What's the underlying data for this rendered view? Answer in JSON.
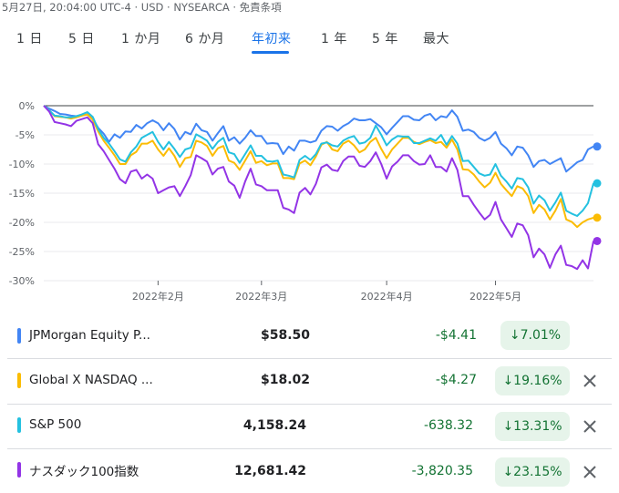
{
  "header": {
    "timestamp": "5月27日, 20:04:00 UTC-4 · USD · NYSEARCA · 免責条項"
  },
  "tabs": [
    {
      "label": "1 日",
      "active": false
    },
    {
      "label": "5 日",
      "active": false
    },
    {
      "label": "1 か月",
      "active": false
    },
    {
      "label": "6 か月",
      "active": false
    },
    {
      "label": "年初来",
      "active": true
    },
    {
      "label": "1 年",
      "active": false
    },
    {
      "label": "5 年",
      "active": false
    },
    {
      "label": "最大",
      "active": false
    }
  ],
  "chart_data": {
    "type": "line",
    "ylim": [
      -30,
      0
    ],
    "yticks": [
      "0%",
      "-5%",
      "-10%",
      "-15%",
      "-20%",
      "-25%",
      "-30%"
    ],
    "ytick_values": [
      0,
      -5,
      -10,
      -15,
      -20,
      -25,
      -30
    ],
    "xtick_labels": [
      "2022年2月",
      "2022年3月",
      "2022年4月",
      "2022年5月"
    ],
    "xtick_positions": [
      21,
      40,
      63,
      83
    ],
    "n_points": 102,
    "grid": true,
    "series": [
      {
        "name": "JPMorgan Equity P...",
        "color": "#4285f4",
        "values": [
          0,
          -0.5,
          -0.9,
          -1.4,
          -1.5,
          -1.7,
          -1.8,
          -1.6,
          -1.5,
          -2.2,
          -3.8,
          -4.8,
          -6.2,
          -4.9,
          -5.5,
          -4.4,
          -4.5,
          -3.3,
          -3.9,
          -3.0,
          -2.5,
          -3.0,
          -4.2,
          -3.0,
          -4.0,
          -5.8,
          -4.5,
          -4.9,
          -3.1,
          -4.2,
          -4.5,
          -6.0,
          -4.7,
          -3.5,
          -6.0,
          -5.4,
          -6.5,
          -5.5,
          -4.2,
          -5.2,
          -5.2,
          -6.5,
          -6.4,
          -6.5,
          -8.3,
          -7.0,
          -7.7,
          -6.0,
          -6.0,
          -6.3,
          -6.0,
          -4.3,
          -3.5,
          -3.6,
          -4.3,
          -3.5,
          -3.0,
          -2.2,
          -2.5,
          -2.5,
          -2.3,
          -3.0,
          -3.7,
          -4.9,
          -3.8,
          -2.8,
          -1.8,
          -1.8,
          -2.4,
          -2.5,
          -1.7,
          -1.4,
          -2.5,
          -1.8,
          -2.0,
          -0.8,
          -1.9,
          -4.3,
          -4.1,
          -4.5,
          -5.5,
          -6.0,
          -5.5,
          -4.5,
          -6.5,
          -7.3,
          -8.5,
          -7.0,
          -7.2,
          -8.5,
          -10.5,
          -9.5,
          -9.3,
          -10.0,
          -9.5,
          -9.0,
          -11.3,
          -10.5,
          -9.7,
          -9.3,
          -7.5,
          -7.0
        ]
      },
      {
        "name": "Global X NASDAQ ...",
        "color": "#fbbc04",
        "values": [
          0,
          -0.8,
          -1.8,
          -1.9,
          -2.0,
          -2.2,
          -2.0,
          -1.7,
          -1.5,
          -2.4,
          -4.4,
          -6.0,
          -7.2,
          -8.5,
          -10.0,
          -10.0,
          -8.5,
          -7.9,
          -6.5,
          -6.5,
          -6.0,
          -7.5,
          -8.6,
          -7.3,
          -8.6,
          -10.5,
          -9.0,
          -8.8,
          -6.0,
          -6.3,
          -6.9,
          -8.6,
          -7.3,
          -6.9,
          -9.4,
          -9.8,
          -11.0,
          -9.4,
          -7.8,
          -9.8,
          -9.5,
          -10.2,
          -9.9,
          -9.9,
          -12.4,
          -12.4,
          -12.6,
          -9.9,
          -9.4,
          -10.2,
          -8.7,
          -6.7,
          -6.2,
          -7.5,
          -7.8,
          -6.5,
          -6.0,
          -6.8,
          -8.0,
          -7.5,
          -6.2,
          -5.5,
          -7.4,
          -9.0,
          -7.5,
          -6.5,
          -5.5,
          -5.5,
          -6.2,
          -6.6,
          -6.2,
          -5.9,
          -6.4,
          -6.2,
          -7.2,
          -5.8,
          -7.5,
          -10.9,
          -11.0,
          -11.8,
          -13.0,
          -14.0,
          -13.2,
          -11.5,
          -13.4,
          -14.5,
          -15.5,
          -13.8,
          -14.2,
          -15.5,
          -18.4,
          -17.0,
          -17.8,
          -19.5,
          -18.0,
          -16.0,
          -19.5,
          -19.9,
          -20.8,
          -20.0,
          -19.5,
          -19.2
        ]
      },
      {
        "name": "S&P 500",
        "color": "#24c1e0",
        "values": [
          0,
          -0.8,
          -1.7,
          -1.8,
          -2.0,
          -2.0,
          -1.8,
          -1.5,
          -1.1,
          -1.9,
          -4.0,
          -5.5,
          -6.5,
          -7.8,
          -9.2,
          -9.6,
          -8.0,
          -7.0,
          -5.5,
          -5.0,
          -4.5,
          -6.2,
          -7.5,
          -6.2,
          -7.4,
          -8.8,
          -7.5,
          -7.2,
          -4.9,
          -5.4,
          -6.0,
          -7.4,
          -6.2,
          -5.5,
          -8.0,
          -8.3,
          -9.8,
          -8.3,
          -6.8,
          -8.6,
          -8.6,
          -9.5,
          -9.6,
          -9.4,
          -11.8,
          -12.0,
          -12.3,
          -9.3,
          -8.6,
          -9.3,
          -8.3,
          -6.5,
          -6.3,
          -6.8,
          -7.0,
          -6.0,
          -5.5,
          -5.2,
          -6.5,
          -6.3,
          -5.5,
          -3.4,
          -5.0,
          -6.8,
          -5.8,
          -5.2,
          -5.3,
          -5.3,
          -6.4,
          -6.4,
          -6.0,
          -5.6,
          -6.0,
          -5.0,
          -6.7,
          -5.2,
          -6.5,
          -9.5,
          -9.4,
          -10.5,
          -11.6,
          -12.0,
          -11.8,
          -10.0,
          -12.0,
          -13.0,
          -14.2,
          -12.4,
          -12.6,
          -14.0,
          -16.8,
          -15.4,
          -16.2,
          -18.0,
          -16.6,
          -14.9,
          -18.0,
          -18.5,
          -18.9,
          -18.0,
          -16.7,
          -13.3
        ]
      },
      {
        "name": "ナスダック100指数",
        "color": "#9334e6",
        "values": [
          0,
          -1.0,
          -2.8,
          -3.0,
          -3.2,
          -3.5,
          -2.6,
          -2.3,
          -2.0,
          -3.0,
          -6.6,
          -7.8,
          -9.3,
          -10.8,
          -12.6,
          -13.3,
          -11.3,
          -11.0,
          -12.5,
          -11.8,
          -12.5,
          -15.0,
          -14.5,
          -14.0,
          -13.8,
          -15.5,
          -13.8,
          -11.9,
          -8.5,
          -9.0,
          -9.6,
          -11.8,
          -10.8,
          -10.5,
          -13.0,
          -13.7,
          -15.8,
          -13.0,
          -10.8,
          -13.5,
          -13.8,
          -14.5,
          -14.5,
          -14.5,
          -17.5,
          -17.8,
          -18.4,
          -14.9,
          -14.1,
          -15.2,
          -13.4,
          -10.6,
          -10.1,
          -11.0,
          -11.2,
          -9.5,
          -8.7,
          -8.7,
          -10.3,
          -10.5,
          -9.5,
          -8.0,
          -10.0,
          -12.5,
          -10.4,
          -9.6,
          -8.5,
          -8.5,
          -9.5,
          -10.1,
          -10.0,
          -8.5,
          -10.5,
          -10.5,
          -11.3,
          -9.0,
          -11.0,
          -15.5,
          -15.5,
          -17.0,
          -18.3,
          -19.5,
          -18.7,
          -16.5,
          -19.5,
          -21.0,
          -22.5,
          -20.2,
          -20.5,
          -22.2,
          -26.0,
          -24.5,
          -25.5,
          -27.8,
          -25.5,
          -24.0,
          -27.3,
          -27.5,
          -28.0,
          -26.5,
          -27.9,
          -23.2
        ]
      }
    ]
  },
  "table": {
    "rows": [
      {
        "name": "JPMorgan Equity P...",
        "price": "$58.50",
        "change": "-$4.41",
        "pct": "7.01%",
        "removable": false
      },
      {
        "name": "Global X NASDAQ ...",
        "price": "$18.02",
        "change": "-$4.27",
        "pct": "19.16%",
        "removable": true
      },
      {
        "name": "S&P 500",
        "price": "4,158.24",
        "change": "-638.32",
        "pct": "13.31%",
        "removable": true
      },
      {
        "name": "ナスダック100指数",
        "price": "12,681.42",
        "change": "-3,820.35",
        "pct": "23.15%",
        "removable": true
      }
    ]
  }
}
